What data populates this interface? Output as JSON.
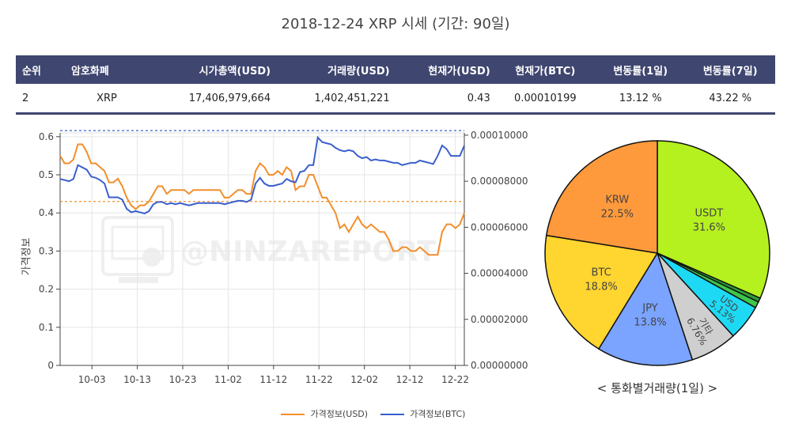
{
  "title": "2018-12-24 XRP 시세 (기간: 90일)",
  "table": {
    "headers": [
      "순위",
      "암호화폐",
      "시가총액(USD)",
      "거래량(USD)",
      "현재가(USD)",
      "현재가(BTC)",
      "변동률(1일)",
      "변동률(7일)"
    ],
    "row": {
      "rank": "2",
      "name": "XRP",
      "market_cap": "17,406,979,664",
      "volume": "1,402,451,221",
      "price_usd": "0.43",
      "price_btc": "0.00010199",
      "change_1d": "13.12 %",
      "change_7d": "43.22 %"
    }
  },
  "colors": {
    "header_bg": "#3f4670",
    "usd_line": "#f28e2b",
    "btc_line": "#3a5fcd",
    "positive": "#2e9a2e"
  },
  "watermark": "@NINZAREPORT",
  "pie_caption": "< 통화별거래량(1일) >",
  "chart_data": [
    {
      "type": "line",
      "x_tick_labels": [
        "10-03",
        "10-13",
        "10-23",
        "11-02",
        "11-12",
        "11-22",
        "12-02",
        "12-12",
        "12-22"
      ],
      "x_start": "2018-09-26",
      "x_end": "2018-12-24",
      "ylabel": "가격정보",
      "y_left": {
        "ylim": [
          0,
          0.61
        ],
        "ticks": [
          "0",
          "0.1",
          "0.2",
          "0.3",
          "0.4",
          "0.5",
          "0.6"
        ]
      },
      "y_right": {
        "ylim": [
          0,
          0.000101
        ],
        "ticks": [
          "0.00000000",
          "0.00002000",
          "0.00004000",
          "0.00006000",
          "0.00008000",
          "0.00010000"
        ]
      },
      "grid": true,
      "legend_position": "bottom",
      "reference_lines": {
        "usd": 0.43,
        "btc": 0.000102
      },
      "series": [
        {
          "name": "가격정보(USD)",
          "axis": "left",
          "values": [
            0.55,
            0.53,
            0.53,
            0.54,
            0.58,
            0.58,
            0.56,
            0.53,
            0.53,
            0.52,
            0.51,
            0.48,
            0.48,
            0.49,
            0.47,
            0.44,
            0.42,
            0.41,
            0.42,
            0.42,
            0.43,
            0.45,
            0.47,
            0.47,
            0.45,
            0.46,
            0.46,
            0.46,
            0.46,
            0.45,
            0.46,
            0.46,
            0.46,
            0.46,
            0.46,
            0.46,
            0.46,
            0.44,
            0.44,
            0.45,
            0.46,
            0.46,
            0.45,
            0.45,
            0.51,
            0.53,
            0.52,
            0.5,
            0.5,
            0.51,
            0.5,
            0.52,
            0.51,
            0.46,
            0.47,
            0.47,
            0.5,
            0.5,
            0.47,
            0.44,
            0.44,
            0.42,
            0.4,
            0.36,
            0.37,
            0.35,
            0.37,
            0.39,
            0.37,
            0.36,
            0.37,
            0.36,
            0.35,
            0.35,
            0.33,
            0.3,
            0.3,
            0.31,
            0.31,
            0.3,
            0.3,
            0.31,
            0.3,
            0.29,
            0.29,
            0.29,
            0.35,
            0.37,
            0.37,
            0.36,
            0.37,
            0.4
          ]
        },
        {
          "name": "가격정보(BTC)",
          "axis": "right",
          "values": [
            8.1e-05,
            8.05e-05,
            8e-05,
            8.1e-05,
            8.7e-05,
            8.6e-05,
            8.5e-05,
            8.2e-05,
            8.15e-05,
            8.05e-05,
            7.9e-05,
            7.3e-05,
            7.3e-05,
            7.3e-05,
            7.2e-05,
            6.8e-05,
            6.65e-05,
            6.7e-05,
            6.65e-05,
            6.6e-05,
            6.7e-05,
            7e-05,
            7.1e-05,
            7.1e-05,
            7e-05,
            7.05e-05,
            7e-05,
            7.05e-05,
            7e-05,
            6.95e-05,
            7e-05,
            7.05e-05,
            7.05e-05,
            7.05e-05,
            7.05e-05,
            7.05e-05,
            7.05e-05,
            7e-05,
            7.05e-05,
            7.1e-05,
            7.15e-05,
            7.15e-05,
            7.1e-05,
            7.2e-05,
            7.9e-05,
            8.15e-05,
            7.9e-05,
            7.8e-05,
            7.8e-05,
            7.85e-05,
            7.9e-05,
            8.1e-05,
            8e-05,
            7.95e-05,
            8.4e-05,
            8.45e-05,
            8.7e-05,
            8.7e-05,
            9.9e-05,
            9.7e-05,
            9.65e-05,
            9.6e-05,
            9.45e-05,
            9.35e-05,
            9.3e-05,
            9.35e-05,
            9.3e-05,
            9.1e-05,
            9e-05,
            9.05e-05,
            8.9e-05,
            8.95e-05,
            8.9e-05,
            8.9e-05,
            8.85e-05,
            8.8e-05,
            8.8e-05,
            8.7e-05,
            8.75e-05,
            8.8e-05,
            8.8e-05,
            8.9e-05,
            8.85e-05,
            8.8e-05,
            8.75e-05,
            9.1e-05,
            9.55e-05,
            9.4e-05,
            9.1e-05,
            9.1e-05,
            9.1e-05,
            9.55e-05
          ]
        }
      ]
    },
    {
      "type": "pie",
      "title": "< 통화별거래량(1일) >",
      "slices": [
        {
          "label": "USDT",
          "percent": 31.6,
          "color": "#b5f01f",
          "show_text": "31.6%"
        },
        {
          "label": "",
          "percent": 0.6,
          "color": "#2c9e3a",
          "show_text": ""
        },
        {
          "label": "",
          "percent": 0.9,
          "color": "#3fc64a",
          "show_text": ""
        },
        {
          "label": "USD",
          "percent": 5.13,
          "color": "#1ed9f4",
          "show_text": "5.13%"
        },
        {
          "label": "기타",
          "percent": 6.76,
          "color": "#cfcfcf",
          "show_text": "6.76%"
        },
        {
          "label": "JPY",
          "percent": 13.8,
          "color": "#7aa4ff",
          "show_text": "13.8%"
        },
        {
          "label": "BTC",
          "percent": 18.8,
          "color": "#ffd52f",
          "show_text": "18.8%"
        },
        {
          "label": "KRW",
          "percent": 22.5,
          "color": "#ff9a3c",
          "show_text": "22.5%"
        }
      ]
    }
  ]
}
